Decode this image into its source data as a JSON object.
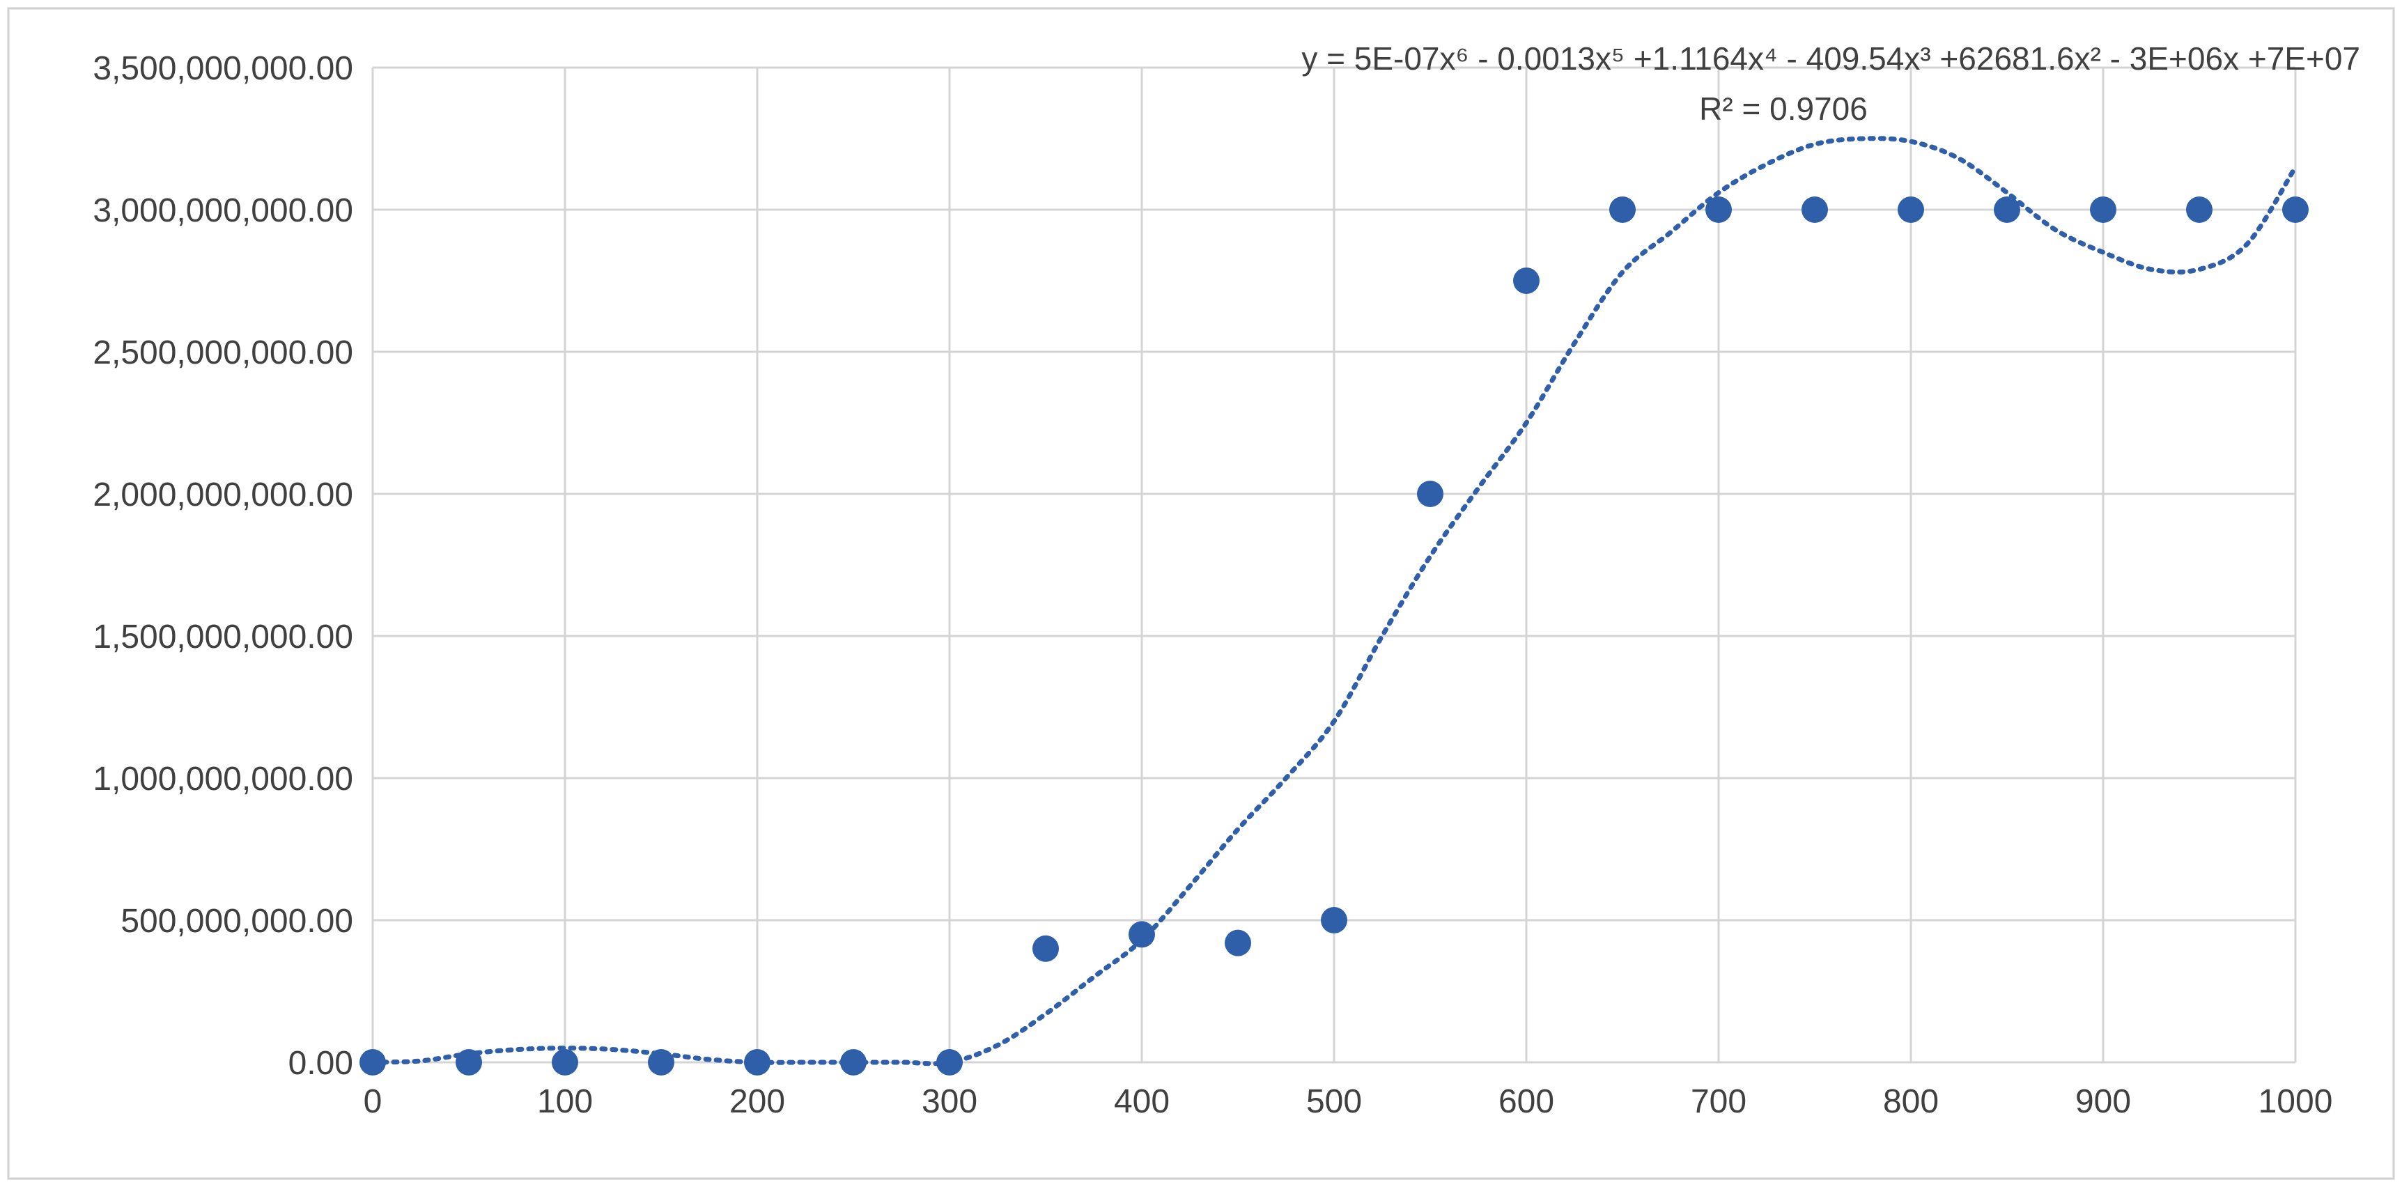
{
  "chart_data": {
    "type": "scatter",
    "title": "",
    "xlabel": "",
    "ylabel": "",
    "xlim": [
      0,
      1000
    ],
    "ylim": [
      0,
      3500000000
    ],
    "x_ticks": [
      {
        "value": 0,
        "label": "0"
      },
      {
        "value": 100,
        "label": "100"
      },
      {
        "value": 200,
        "label": "200"
      },
      {
        "value": 300,
        "label": "300"
      },
      {
        "value": 400,
        "label": "400"
      },
      {
        "value": 500,
        "label": "500"
      },
      {
        "value": 600,
        "label": "600"
      },
      {
        "value": 700,
        "label": "700"
      },
      {
        "value": 800,
        "label": "800"
      },
      {
        "value": 900,
        "label": "900"
      },
      {
        "value": 1000,
        "label": "1000"
      }
    ],
    "y_ticks": [
      {
        "value": 0,
        "label": "0.00"
      },
      {
        "value": 500000000,
        "label": "500,000,000.00"
      },
      {
        "value": 1000000000,
        "label": "1,000,000,000.00"
      },
      {
        "value": 1500000000,
        "label": "1,500,000,000.00"
      },
      {
        "value": 2000000000,
        "label": "2,000,000,000.00"
      },
      {
        "value": 2500000000,
        "label": "2,500,000,000.00"
      },
      {
        "value": 3000000000,
        "label": "3,000,000,000.00"
      },
      {
        "value": 3500000000,
        "label": "3,500,000,000.00"
      }
    ],
    "grid": true,
    "legend": "none",
    "series": [
      {
        "color": "#2e5fa8",
        "x": [
          0,
          50,
          100,
          150,
          200,
          250,
          300,
          350,
          400,
          450,
          500,
          550,
          600,
          650,
          700,
          750,
          800,
          850,
          900,
          950,
          1000
        ],
        "y": [
          0,
          0,
          0,
          0,
          0,
          0,
          0,
          400000000,
          450000000,
          420000000,
          500000000,
          2000000000,
          2750000000,
          3000000000,
          3000000000,
          3000000000,
          3000000000,
          3000000000,
          3000000000,
          3000000000,
          3000000000
        ]
      }
    ],
    "trendline": {
      "type": "polynomial",
      "order": 6,
      "style": "dotted",
      "color": "#2e5fa8",
      "curve": {
        "x": [
          0,
          25,
          50,
          75,
          100,
          125,
          150,
          175,
          200,
          225,
          250,
          275,
          300,
          325,
          350,
          375,
          400,
          425,
          450,
          475,
          500,
          525,
          550,
          575,
          600,
          625,
          650,
          675,
          700,
          725,
          750,
          775,
          800,
          825,
          850,
          875,
          900,
          925,
          950,
          975,
          1000
        ],
        "y": [
          0,
          5000000,
          30000000,
          45000000,
          50000000,
          45000000,
          30000000,
          10000000,
          0,
          0,
          0,
          0,
          0,
          60000000,
          170000000,
          300000000,
          430000000,
          620000000,
          820000000,
          1000000000,
          1200000000,
          1500000000,
          1780000000,
          2020000000,
          2250000000,
          2530000000,
          2780000000,
          2920000000,
          3060000000,
          3160000000,
          3230000000,
          3250000000,
          3240000000,
          3180000000,
          3060000000,
          2930000000,
          2850000000,
          2790000000,
          2790000000,
          2880000000,
          3150000000
        ]
      },
      "equation_text": "y = 5E-07x⁶ - 0.0013x⁵ +1.1164x⁴ - 409.54x³ +62681.6x² - 3E+06x +7E+07",
      "r2_text": "R² = 0.9706"
    }
  }
}
